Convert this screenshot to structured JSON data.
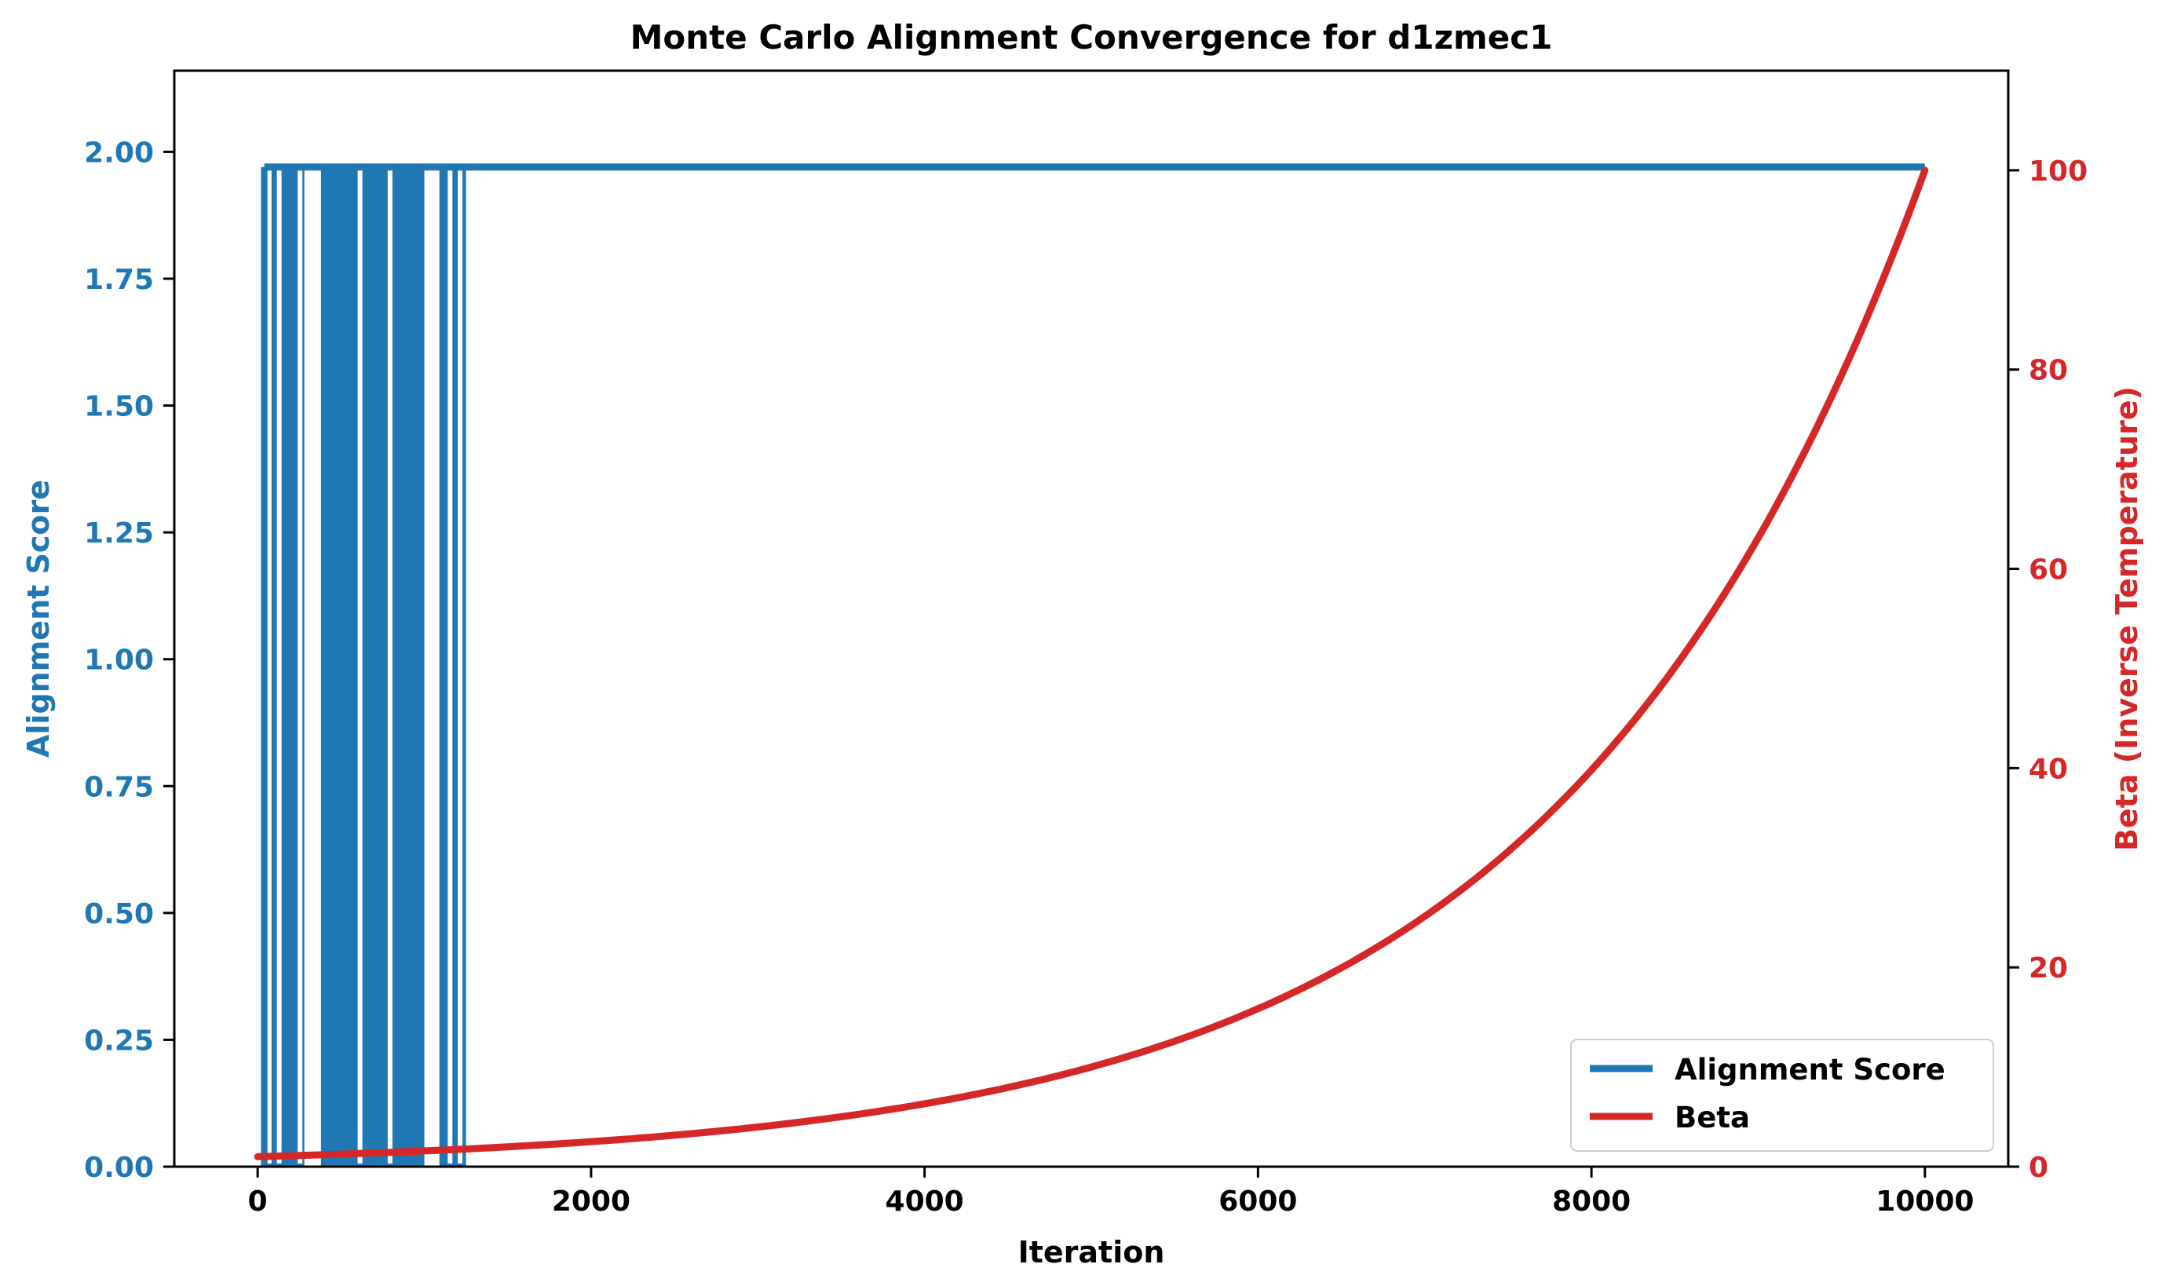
{
  "chart_data": {
    "type": "line",
    "title": "Monte Carlo Alignment Convergence for d1zmec1",
    "xlabel": "Iteration",
    "ylabel_left": "Alignment Score",
    "ylabel_right": "Beta (Inverse Temperature)",
    "xlim": [
      -500,
      10500
    ],
    "ylim_left": [
      0,
      2.16
    ],
    "ylim_right": [
      0,
      110
    ],
    "x_ticks": [
      0,
      2000,
      4000,
      6000,
      8000,
      10000
    ],
    "y_ticks_left": [
      0.0,
      0.25,
      0.5,
      0.75,
      1.0,
      1.25,
      1.5,
      1.75,
      2.0
    ],
    "y_ticks_left_labels": [
      "0.00",
      "0.25",
      "0.50",
      "0.75",
      "1.00",
      "1.25",
      "1.50",
      "1.75",
      "2.00"
    ],
    "y_ticks_right": [
      0,
      20,
      40,
      60,
      80,
      100
    ],
    "y_ticks_right_labels": [
      "0",
      "20",
      "40",
      "60",
      "80",
      "100"
    ],
    "grid": false,
    "legend_position": "bottom-right",
    "colors": {
      "alignment": "#1f77b4",
      "beta": "#d62728",
      "axis": "#000000"
    },
    "series": [
      {
        "name": "Alignment Score",
        "axis": "left",
        "max_value": 1.97,
        "min_value": 0.0,
        "start_iteration": 40,
        "end_iteration": 10000,
        "low_intervals": [
          [
            55,
            70
          ],
          [
            115,
            130
          ],
          [
            240,
            260
          ],
          [
            290,
            300
          ],
          [
            310,
            330
          ],
          [
            345,
            360
          ],
          [
            600,
            615
          ],
          [
            780,
            790
          ],
          [
            1030,
            1070
          ],
          [
            1140,
            1160
          ],
          [
            1200,
            1210
          ],
          [
            1250,
            1265
          ]
        ],
        "dense_flip_ranges": [
          [
            20,
            280
          ],
          [
            380,
            1000
          ],
          [
            1090,
            1250
          ]
        ]
      },
      {
        "name": "Beta",
        "axis": "right",
        "x": [
          0,
          1000,
          2000,
          3000,
          4000,
          5000,
          6000,
          7000,
          8000,
          9000,
          10000
        ],
        "values": [
          1.0,
          1.58,
          2.51,
          3.98,
          6.31,
          10.0,
          15.85,
          25.12,
          39.81,
          63.1,
          100.0
        ]
      }
    ]
  }
}
